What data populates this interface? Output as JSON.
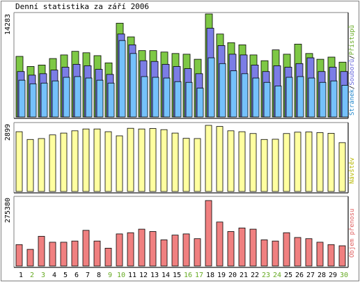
{
  "chart_data": {
    "type": "bar",
    "title": "Denní statistika za září 2006",
    "x": [
      "1",
      "2",
      "3",
      "4",
      "5",
      "6",
      "7",
      "8",
      "9",
      "10",
      "11",
      "12",
      "13",
      "14",
      "15",
      "16",
      "17",
      "18",
      "19",
      "20",
      "21",
      "22",
      "23",
      "24",
      "25",
      "26",
      "27",
      "28",
      "29",
      "30"
    ],
    "weekend_days": [
      "2",
      "3",
      "9",
      "10",
      "16",
      "17",
      "23",
      "24",
      "30"
    ],
    "colors": {
      "pristupu": "#7ec845",
      "souboru": "#7b7de6",
      "stranek": "#75c1fb",
      "navstev": "#ffffa0",
      "prenos": "#f08080",
      "weekend_label": "#66aa22",
      "day_label": "#000000",
      "axis_label_pristupu": "#66aa22",
      "axis_label_souboru": "#6666dd",
      "axis_label_stranek": "#2288cc",
      "axis_label_navstev": "#b8b800",
      "axis_label_prenos": "#e06060"
    },
    "panels": [
      {
        "name": "hits",
        "ymax_label": "14283",
        "ymax": 14283,
        "axis_label_parts": [
          "Stránek",
          "/",
          "Souborů",
          "/",
          "Přístupů"
        ],
        "series": [
          {
            "name": "Přístupů",
            "values": [
              8400,
              7000,
              7200,
              8100,
              8600,
              9100,
              8900,
              8500,
              7500,
              13000,
              11100,
              9200,
              9200,
              9000,
              8800,
              8700,
              8000,
              14283,
              11500,
              10300,
              10000,
              8600,
              7800,
              9300,
              8700,
              10100,
              8800,
              8000,
              8300,
              7600
            ]
          },
          {
            "name": "Souborů",
            "values": [
              6300,
              5800,
              6000,
              6500,
              6900,
              7300,
              7100,
              6600,
              5900,
              11500,
              10000,
              7800,
              7700,
              7300,
              7000,
              6700,
              6000,
              12300,
              9900,
              8700,
              8600,
              7200,
              6300,
              7100,
              6900,
              7400,
              8200,
              6300,
              6900,
              6300
            ]
          },
          {
            "name": "Stránek",
            "values": [
              5100,
              4600,
              4700,
              5000,
              5500,
              5600,
              5400,
              5100,
              4700,
              10600,
              8800,
              5600,
              5500,
              5400,
              4900,
              4800,
              4000,
              8200,
              7400,
              6400,
              6000,
              5400,
              4800,
              4300,
              5500,
              5600,
              5400,
              4800,
              5000,
              4400
            ]
          }
        ]
      },
      {
        "name": "visits",
        "ymax_label": "2899",
        "ymax": 2899,
        "axis_label_parts": [
          "Návštěv"
        ],
        "series": [
          {
            "name": "Návštěv",
            "values": [
              2620,
              2280,
              2320,
              2480,
              2560,
              2660,
              2740,
              2740,
              2620,
              2440,
              2770,
              2740,
              2760,
              2710,
              2560,
              2330,
              2320,
              2899,
              2850,
              2660,
              2620,
              2540,
              2280,
              2290,
              2540,
              2600,
              2610,
              2580,
              2550,
              2140
            ]
          }
        ]
      },
      {
        "name": "transfer",
        "ymax_label": "275380",
        "ymax": 275380,
        "axis_label_parts": [
          "Objem přenosu"
        ],
        "series": [
          {
            "name": "Objem přenosu",
            "values": [
              90000,
              70000,
              125000,
              100000,
              100000,
              105000,
              150000,
              105000,
              75000,
              135000,
              140000,
              155000,
              145000,
              110000,
              130000,
              135000,
              115000,
              275380,
              185000,
              145000,
              160000,
              155000,
              110000,
              105000,
              140000,
              120000,
              115000,
              100000,
              90000,
              85000
            ]
          }
        ]
      }
    ]
  }
}
